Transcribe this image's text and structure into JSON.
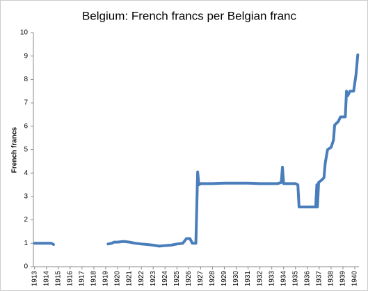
{
  "chart_data": {
    "type": "line",
    "title": "Belgium: French francs per Belgian franc",
    "y_label": "French francs",
    "x": [
      1913.0,
      1913.5,
      1914.0,
      1914.4,
      1914.6,
      1917.0,
      1919.2,
      1919.5,
      1919.7,
      1920.0,
      1920.5,
      1921.0,
      1921.5,
      1922.0,
      1922.5,
      1923.0,
      1923.5,
      1924.0,
      1924.5,
      1925.0,
      1925.5,
      1925.8,
      1926.1,
      1926.3,
      1926.6,
      1926.75,
      1926.85,
      1927.0,
      1928.0,
      1929.0,
      1930.0,
      1931.0,
      1932.0,
      1933.0,
      1933.5,
      1933.8,
      1933.9,
      1934.0,
      1935.0,
      1935.2,
      1935.3,
      1936.0,
      1936.7,
      1936.8,
      1936.85,
      1936.95,
      1937.2,
      1937.4,
      1937.5,
      1937.7,
      1938.0,
      1938.2,
      1938.3,
      1938.6,
      1938.8,
      1939.2,
      1939.3,
      1939.4,
      1939.6,
      1939.9,
      1940.1,
      1940.25
    ],
    "series": [
      {
        "name": "French francs per Belgian franc",
        "color": "#4a7ebb",
        "values": [
          1.0,
          1.0,
          1.0,
          1.0,
          0.95,
          null,
          0.97,
          1.0,
          1.05,
          1.05,
          1.08,
          1.05,
          1.0,
          0.97,
          0.95,
          0.92,
          0.88,
          0.9,
          0.92,
          0.97,
          1.0,
          1.2,
          1.2,
          1.0,
          1.0,
          4.05,
          3.5,
          3.55,
          3.55,
          3.57,
          3.57,
          3.57,
          3.55,
          3.55,
          3.55,
          3.6,
          4.25,
          3.55,
          3.55,
          3.5,
          2.55,
          2.55,
          2.55,
          3.5,
          2.55,
          3.6,
          3.7,
          3.8,
          4.4,
          5.0,
          5.1,
          5.4,
          6.05,
          6.2,
          6.4,
          6.4,
          7.5,
          7.3,
          7.5,
          7.5,
          8.2,
          9.05
        ]
      }
    ],
    "xlim": [
      1912.9,
      1940.35
    ],
    "ylim": [
      0,
      10
    ],
    "xticks": [
      1913,
      1914,
      1915,
      1916,
      1917,
      1918,
      1919,
      1920,
      1921,
      1922,
      1923,
      1924,
      1925,
      1926,
      1927,
      1928,
      1929,
      1930,
      1931,
      1932,
      1933,
      1934,
      1935,
      1936,
      1937,
      1938,
      1939,
      1940
    ],
    "yticks": [
      0,
      1,
      2,
      3,
      4,
      5,
      6,
      7,
      8,
      9,
      10
    ],
    "grid": false
  }
}
